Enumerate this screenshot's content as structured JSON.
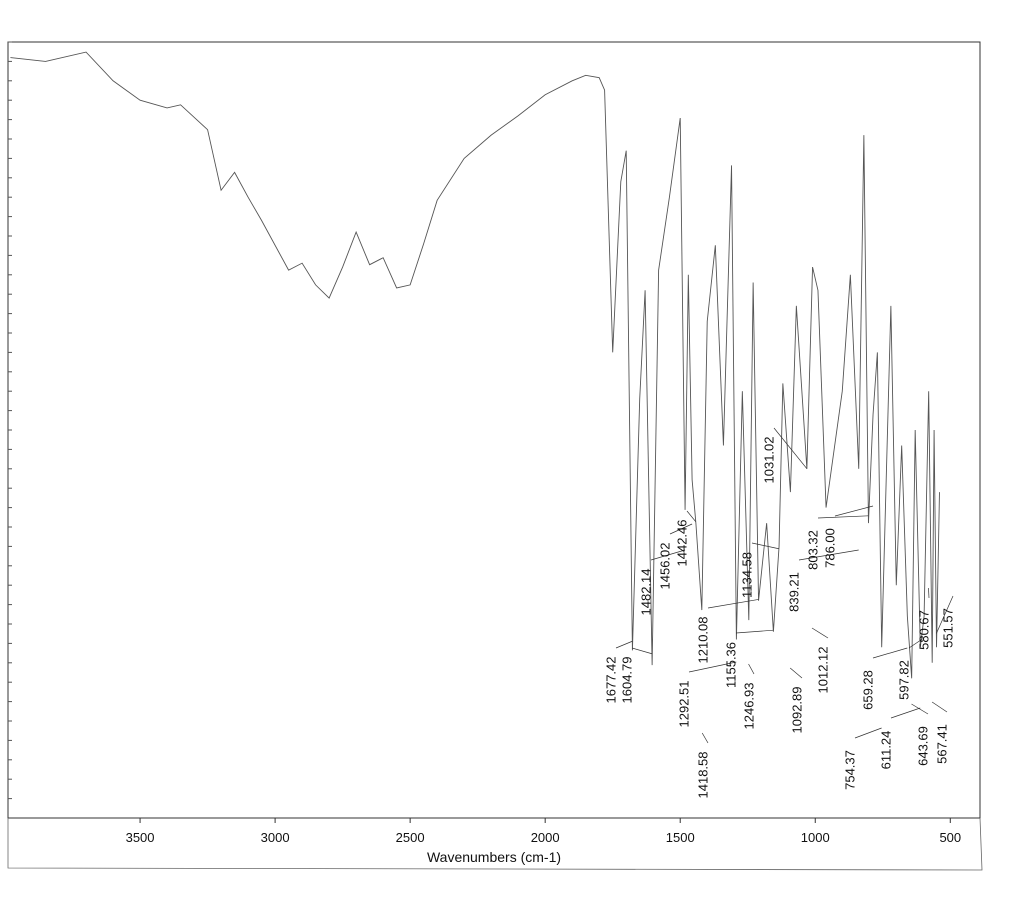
{
  "chart_data": {
    "type": "line",
    "x_label": "Wavenumbers (cm-1)",
    "xlim": [
      3989,
      390
    ],
    "ylim": [
      0,
      100
    ],
    "xticks": [
      3500,
      3000,
      2500,
      2000,
      1500,
      1000,
      500
    ],
    "series": [
      {
        "color": "#555",
        "x": [
          3980,
          3850,
          3700,
          3600,
          3500,
          3400,
          3350,
          3250,
          3200,
          3150,
          3100,
          3050,
          2950,
          2900,
          2850,
          2800,
          2750,
          2700,
          2650,
          2600,
          2550,
          2500,
          2450,
          2400,
          2300,
          2200,
          2100,
          2000,
          1900,
          1850,
          1800,
          1780,
          1750,
          1720,
          1700,
          1677,
          1650,
          1630,
          1604,
          1580,
          1540,
          1500,
          1482,
          1470,
          1456,
          1442,
          1420,
          1400,
          1370,
          1340,
          1310,
          1292,
          1270,
          1246,
          1230,
          1210,
          1180,
          1155,
          1134,
          1120,
          1092,
          1070,
          1031,
          1010,
          990,
          960,
          900,
          870,
          839,
          820,
          803,
          786,
          770,
          754,
          720,
          700,
          680,
          659,
          643,
          630,
          611,
          597,
          580,
          567,
          560,
          551,
          540
        ],
        "values": [
          98,
          97.5,
          98.7,
          95,
          92.5,
          91.5,
          91.9,
          88.7,
          80.9,
          83.2,
          80,
          77,
          70.6,
          71.5,
          68.7,
          67,
          71,
          75.5,
          71.3,
          72.2,
          68.3,
          68.7,
          74,
          79.6,
          85,
          88,
          90.5,
          93.2,
          95,
          95.7,
          95.4,
          93.8,
          60,
          82,
          86,
          21.6,
          54,
          68,
          19.7,
          70.6,
          80,
          90.2,
          39.7,
          70,
          43.6,
          38,
          26.8,
          64,
          73.8,
          48,
          84.1,
          23,
          55,
          25.5,
          69,
          28,
          38,
          24,
          35,
          56,
          42,
          66,
          45,
          71,
          68,
          40,
          55,
          70,
          45,
          88,
          38,
          52,
          60,
          22,
          66,
          30,
          48,
          26,
          18,
          50,
          22,
          26,
          55,
          20,
          50,
          22,
          42
        ]
      }
    ],
    "peaks": [
      1677.42,
      1604.79,
      1482.14,
      1456.02,
      1442.46,
      1418.58,
      1292.51,
      1210.08,
      1155.36,
      1246.93,
      1134.58,
      1031.02,
      1092.89,
      839.21,
      803.32,
      786.0,
      1012.12,
      754.37,
      659.28,
      611.24,
      597.82,
      580.67,
      643.69,
      567.41,
      551.57
    ],
    "peak_labels": [
      "1677.42",
      "1604.79",
      "1482.14",
      "1456.02",
      "1442.46",
      "1418.58",
      "1292.51",
      "1210.08",
      "1155.36",
      "1246.93",
      "1134.58",
      "1031.02",
      "1092.89",
      "839.21",
      "803.32",
      "786.00",
      "1012.12",
      "754.37",
      "659.28",
      "611.24",
      "597.82",
      "580.67",
      "643.69",
      "567.41",
      "551.57"
    ]
  }
}
